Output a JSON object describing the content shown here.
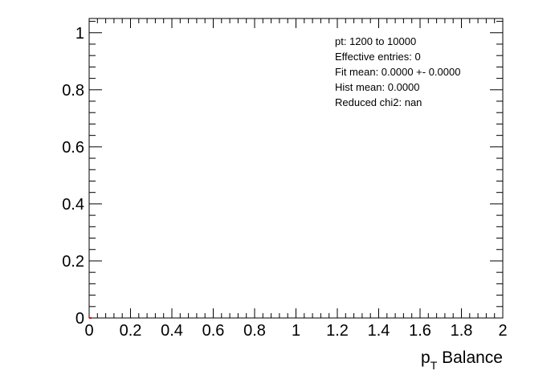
{
  "chart_data": {
    "type": "line",
    "title": "",
    "xlabel_main": "p",
    "xlabel_sub": "T",
    "xlabel_rest": " Balance",
    "ylabel": "",
    "xlim": [
      0,
      2
    ],
    "ylim": [
      0,
      1.05
    ],
    "x_ticks": [
      "0",
      "0.2",
      "0.4",
      "0.6",
      "0.8",
      "1",
      "1.2",
      "1.4",
      "1.6",
      "1.8",
      "2"
    ],
    "y_ticks": [
      "0",
      "0.2",
      "0.4",
      "0.6",
      "0.8",
      "1"
    ],
    "series": [
      {
        "color": "#ff0000",
        "x": [
          0
        ],
        "y": [
          0
        ]
      }
    ],
    "stats_box": [
      "pt: 1200 to 10000",
      "Effective entries: 0",
      "Fit mean: 0.0000 +- 0.0000",
      "Hist mean: 0.0000",
      "Reduced chi2: nan"
    ],
    "grid": false,
    "legend": "top-right"
  }
}
